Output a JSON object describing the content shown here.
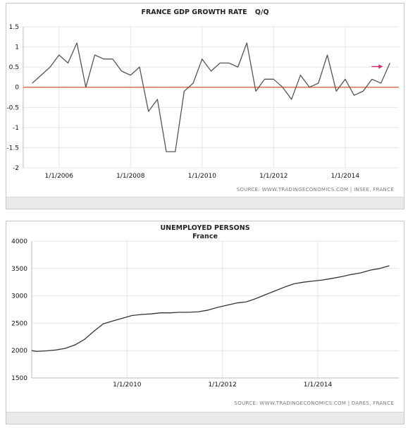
{
  "chart_data": [
    {
      "type": "line",
      "title": "FRANCE GDP GROWTH RATE",
      "subtitle": "Q/Q",
      "source": "SOURCE:  WWW.TRADINGECONOMICS.COM  |  INSEE,  FRANCE",
      "xlabel": "",
      "ylabel": "",
      "ylim": [
        -2,
        1.5
      ],
      "yticks": [
        1.5,
        1,
        0.5,
        0,
        -0.5,
        -1,
        -1.5,
        -2
      ],
      "ytick_labels": [
        "1.5",
        "1",
        "0.5",
        "0",
        "-0.5",
        "-1",
        "-1.5",
        "-2"
      ],
      "xlim": [
        2005.0,
        2015.5
      ],
      "xticks": [
        2006,
        2008,
        2010,
        2012,
        2014
      ],
      "xtick_labels": [
        "1/1/2006",
        "1/1/2008",
        "1/1/2010",
        "1/1/2012",
        "1/1/2014"
      ],
      "grid": true,
      "zero_line_color": "#e0542c",
      "line_color": "#555555",
      "arrow_color": "#e0206a",
      "series": [
        {
          "x": [
            2005.25,
            2005.5,
            2005.75,
            2006.0,
            2006.25,
            2006.5,
            2006.75,
            2007.0,
            2007.25,
            2007.5,
            2007.75,
            2008.0,
            2008.25,
            2008.5,
            2008.75,
            2009.0,
            2009.25,
            2009.5,
            2009.75,
            2010.0,
            2010.25,
            2010.5,
            2010.75,
            2011.0,
            2011.25,
            2011.5,
            2011.75,
            2012.0,
            2012.25,
            2012.5,
            2012.75,
            2013.0,
            2013.25,
            2013.5,
            2013.75,
            2014.0,
            2014.25,
            2014.5,
            2014.75,
            2015.0,
            2015.25
          ],
          "values": [
            0.1,
            0.3,
            0.5,
            0.8,
            0.6,
            1.1,
            0.0,
            0.8,
            0.7,
            0.7,
            0.4,
            0.3,
            0.5,
            -0.6,
            -0.3,
            -1.6,
            -1.6,
            -0.1,
            0.1,
            0.7,
            0.4,
            0.6,
            0.6,
            0.5,
            1.1,
            -0.1,
            0.2,
            0.2,
            0.0,
            -0.3,
            0.3,
            0.0,
            0.1,
            0.8,
            -0.1,
            0.2,
            -0.2,
            -0.1,
            0.2,
            0.1,
            0.6
          ]
        }
      ]
    },
    {
      "type": "line",
      "title": "UNEMPLOYED PERSONS",
      "subtitle": "France",
      "source": "SOURCE:  WWW.TRADINGECONOMICS.COM  |  DARES,  FRANCE",
      "xlabel": "",
      "ylabel": "",
      "ylim": [
        1500,
        4000
      ],
      "yticks": [
        4000,
        3500,
        3000,
        2500,
        2000,
        1500
      ],
      "ytick_labels": [
        "4000",
        "3500",
        "3000",
        "2500",
        "2000",
        "1500"
      ],
      "xlim": [
        2008.0,
        2015.7
      ],
      "xticks": [
        2010,
        2012,
        2014
      ],
      "xtick_labels": [
        "1/1/2010",
        "1/1/2012",
        "1/1/2014"
      ],
      "grid": true,
      "line_color": "#333333",
      "series": [
        {
          "x": [
            2008.0,
            2008.1,
            2008.3,
            2008.5,
            2008.7,
            2008.9,
            2009.1,
            2009.3,
            2009.5,
            2009.7,
            2009.9,
            2010.1,
            2010.3,
            2010.5,
            2010.7,
            2010.9,
            2011.1,
            2011.3,
            2011.5,
            2011.7,
            2011.9,
            2012.1,
            2012.3,
            2012.5,
            2012.7,
            2012.9,
            2013.1,
            2013.3,
            2013.5,
            2013.7,
            2013.9,
            2014.1,
            2014.3,
            2014.5,
            2014.7,
            2014.9,
            2015.1,
            2015.3,
            2015.5
          ],
          "values": [
            2000,
            1985,
            1995,
            2010,
            2040,
            2100,
            2200,
            2350,
            2490,
            2540,
            2590,
            2640,
            2660,
            2670,
            2690,
            2690,
            2700,
            2700,
            2710,
            2740,
            2790,
            2830,
            2870,
            2890,
            2950,
            3020,
            3090,
            3160,
            3220,
            3250,
            3270,
            3290,
            3320,
            3350,
            3390,
            3420,
            3470,
            3500,
            3550
          ]
        }
      ]
    }
  ]
}
